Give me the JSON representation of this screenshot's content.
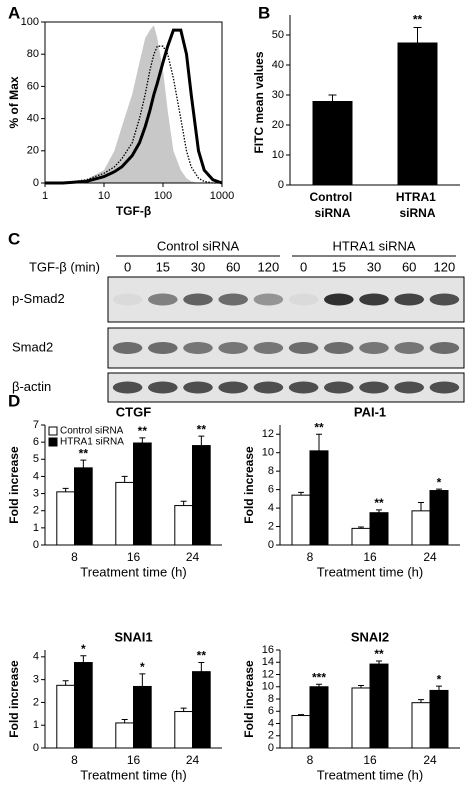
{
  "chart_data": [
    {
      "type": "line",
      "panel_label": "A",
      "xlabel": "TGF-β",
      "ylabel": "% of Max",
      "log_x": true,
      "x": [
        1,
        2,
        5,
        10,
        15,
        20,
        30,
        40,
        50,
        60,
        70,
        80,
        100,
        120,
        150,
        200,
        250,
        300,
        400,
        500,
        700,
        1000
      ],
      "xlim": [
        1,
        1000
      ],
      "xticks": [
        1,
        10,
        100,
        1000
      ],
      "ylim": [
        0,
        100
      ],
      "yticks": [
        0,
        20,
        40,
        60,
        80,
        100
      ],
      "series": [
        {
          "color": "#c8c8c8",
          "style": "fill",
          "values": [
            0,
            0,
            2,
            8,
            20,
            35,
            55,
            75,
            90,
            95,
            98,
            90,
            70,
            45,
            20,
            8,
            3,
            1,
            0,
            0,
            0,
            0
          ]
        },
        {
          "color": "#000000",
          "style": "dotted",
          "values": [
            0,
            0,
            2,
            6,
            10,
            15,
            25,
            40,
            55,
            70,
            80,
            85,
            85,
            80,
            65,
            40,
            20,
            10,
            3,
            1,
            0,
            0
          ]
        },
        {
          "color": "#000000",
          "style": "solid",
          "values": [
            0,
            0,
            1,
            4,
            7,
            10,
            17,
            25,
            35,
            45,
            55,
            62,
            75,
            85,
            95,
            95,
            80,
            55,
            20,
            8,
            2,
            0
          ]
        }
      ]
    },
    {
      "type": "bar",
      "panel_label": "B",
      "ylabel": "FITC mean values",
      "categories": [
        "Control siRNA",
        "HTRA1 siRNA"
      ],
      "values": [
        28,
        47.5
      ],
      "errors": [
        2,
        5
      ],
      "annotations": [
        null,
        "**"
      ],
      "color": "#000000",
      "ylim": [
        0,
        55
      ],
      "yticks": [
        0,
        10,
        20,
        30,
        40,
        50
      ]
    },
    {
      "type": "blot",
      "panel_label": "C",
      "time_label": "TGF-β (min)",
      "groups": [
        "Control siRNA",
        "HTRA1 siRNA"
      ],
      "times": [
        0,
        15,
        30,
        60,
        120,
        0,
        15,
        30,
        60,
        120
      ],
      "rows": [
        {
          "label": "p-Smad2",
          "intensity": [
            0.05,
            0.5,
            0.65,
            0.6,
            0.4,
            0.05,
            0.9,
            0.85,
            0.8,
            0.75
          ]
        },
        {
          "label": "Smad2",
          "intensity": [
            0.6,
            0.6,
            0.55,
            0.55,
            0.55,
            0.6,
            0.6,
            0.55,
            0.55,
            0.6
          ]
        },
        {
          "label": "β-actin",
          "intensity": [
            0.75,
            0.75,
            0.75,
            0.75,
            0.75,
            0.75,
            0.75,
            0.75,
            0.75,
            0.75
          ]
        }
      ]
    },
    {
      "type": "grouped_bar",
      "panel_label": "D",
      "title": "CTGF",
      "xlabel": "Treatment time (h)",
      "ylabel": "Fold increase",
      "categories": [
        "8",
        "16",
        "24"
      ],
      "ylim": [
        0,
        7
      ],
      "yticks": [
        0,
        1,
        2,
        3,
        4,
        5,
        6,
        7
      ],
      "legend": "upper left",
      "series": [
        {
          "name": "Control siRNA",
          "color": "#ffffff",
          "values": [
            3.1,
            3.65,
            2.3
          ],
          "errors": [
            0.2,
            0.35,
            0.25
          ]
        },
        {
          "name": "HTRA1 siRNA",
          "color": "#000000",
          "values": [
            4.5,
            5.95,
            5.8
          ],
          "errors": [
            0.45,
            0.3,
            0.55
          ],
          "annotations": [
            "**",
            "**",
            "**"
          ]
        }
      ]
    },
    {
      "type": "grouped_bar",
      "title": "PAI-1",
      "xlabel": "Treatment time (h)",
      "ylabel": "Fold increase",
      "categories": [
        "8",
        "16",
        "24"
      ],
      "ylim": [
        0,
        13
      ],
      "yticks": [
        0,
        2,
        4,
        6,
        8,
        10,
        12
      ],
      "series": [
        {
          "name": "Control siRNA",
          "color": "#ffffff",
          "values": [
            5.4,
            1.8,
            3.7
          ],
          "errors": [
            0.3,
            0.15,
            0.9
          ]
        },
        {
          "name": "HTRA1 siRNA",
          "color": "#000000",
          "values": [
            10.2,
            3.5,
            5.9
          ],
          "errors": [
            1.8,
            0.3,
            0.15
          ],
          "annotations": [
            "**",
            "**",
            "*"
          ]
        }
      ]
    },
    {
      "type": "grouped_bar",
      "title": "SNAI1",
      "xlabel": "Treatment time (h)",
      "ylabel": "Fold increase",
      "categories": [
        "8",
        "16",
        "24"
      ],
      "ylim": [
        0,
        4.3
      ],
      "yticks": [
        0,
        1,
        2,
        3,
        4
      ],
      "series": [
        {
          "name": "Control siRNA",
          "color": "#ffffff",
          "values": [
            2.75,
            1.1,
            1.6
          ],
          "errors": [
            0.2,
            0.15,
            0.15
          ]
        },
        {
          "name": "HTRA1 siRNA",
          "color": "#000000",
          "values": [
            3.75,
            2.7,
            3.35
          ],
          "errors": [
            0.3,
            0.55,
            0.4
          ],
          "annotations": [
            "*",
            "*",
            "**"
          ]
        }
      ]
    },
    {
      "type": "grouped_bar",
      "title": "SNAI2",
      "xlabel": "Treatment time (h)",
      "ylabel": "Fold increase",
      "categories": [
        "8",
        "16",
        "24"
      ],
      "ylim": [
        0,
        16
      ],
      "yticks": [
        0,
        2,
        4,
        6,
        8,
        10,
        12,
        14,
        16
      ],
      "series": [
        {
          "name": "Control siRNA",
          "color": "#ffffff",
          "values": [
            5.3,
            9.8,
            7.4
          ],
          "errors": [
            0.15,
            0.4,
            0.5
          ]
        },
        {
          "name": "HTRA1 siRNA",
          "color": "#000000",
          "values": [
            10,
            13.7,
            9.4
          ],
          "errors": [
            0.4,
            0.5,
            0.7
          ],
          "annotations": [
            "***",
            "**",
            "*"
          ]
        }
      ]
    }
  ]
}
